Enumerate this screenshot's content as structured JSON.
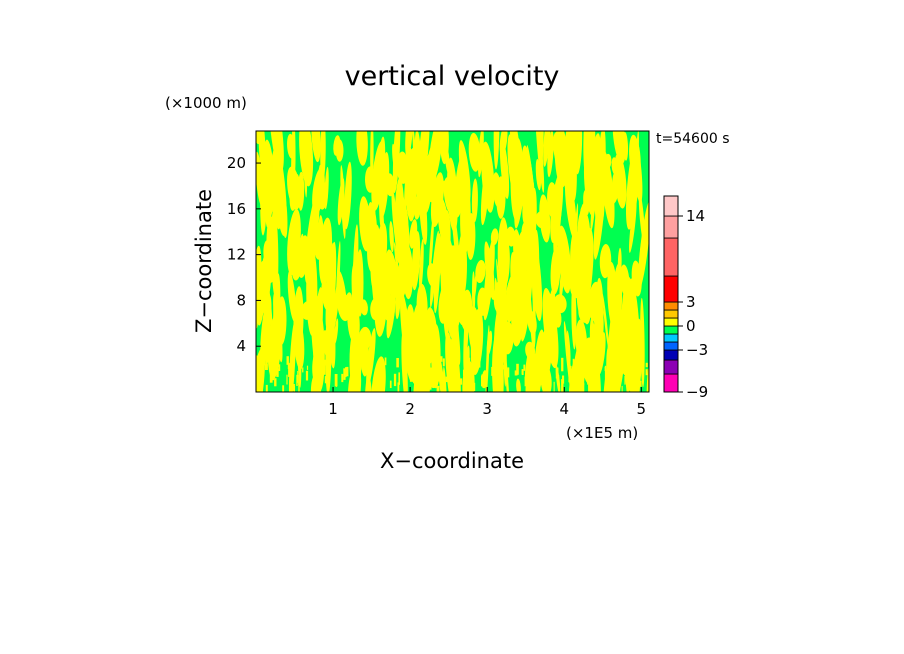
{
  "chart_data": {
    "type": "heatmap",
    "title": "vertical velocity",
    "xlabel": "X−coordinate",
    "ylabel": "Z−coordinate",
    "x_units": "(×1E5 m)",
    "y_units": "(×1000 m)",
    "time_label": "t=54600 s",
    "xlim": [
      0,
      5.1
    ],
    "ylim": [
      0,
      22.8
    ],
    "x_ticks": [
      1,
      2,
      3,
      4,
      5
    ],
    "x_tick_labels": [
      "1",
      "2",
      "3",
      "4",
      "5"
    ],
    "y_ticks": [
      4,
      8,
      12,
      16,
      20
    ],
    "y_tick_labels": [
      "4",
      "8",
      "12",
      "16",
      "20"
    ],
    "field_description": "Fine-scale vertically elongated streaks alternating between the weak positive and weak negative velocity classes; almost the whole domain lies between -1 and 1.",
    "dominant_classes": [
      {
        "range": [
          -1,
          0
        ],
        "color": "#00ff50"
      },
      {
        "range": [
          0,
          1
        ],
        "color": "#ffff00"
      }
    ],
    "colorbar": {
      "levels": [
        -9,
        -7,
        -5,
        -3,
        -2,
        -1,
        0,
        1,
        2,
        3,
        5,
        10,
        14,
        18,
        20
      ],
      "colors": [
        "#ff00b4",
        "#8c00b4",
        "#0000b4",
        "#0064ff",
        "#00c8ff",
        "#00ff50",
        "#ffff00",
        "#ffc800",
        "#ff8c00",
        "#ff0000",
        "#ff6464",
        "#ffa0a0",
        "#ffc8c8",
        "#ffd2d2"
      ],
      "labeled_ticks": [
        -9,
        -3,
        0,
        3,
        14
      ],
      "labeled_tick_text": [
        "−9",
        "−3",
        "0",
        "3",
        "14"
      ]
    }
  }
}
